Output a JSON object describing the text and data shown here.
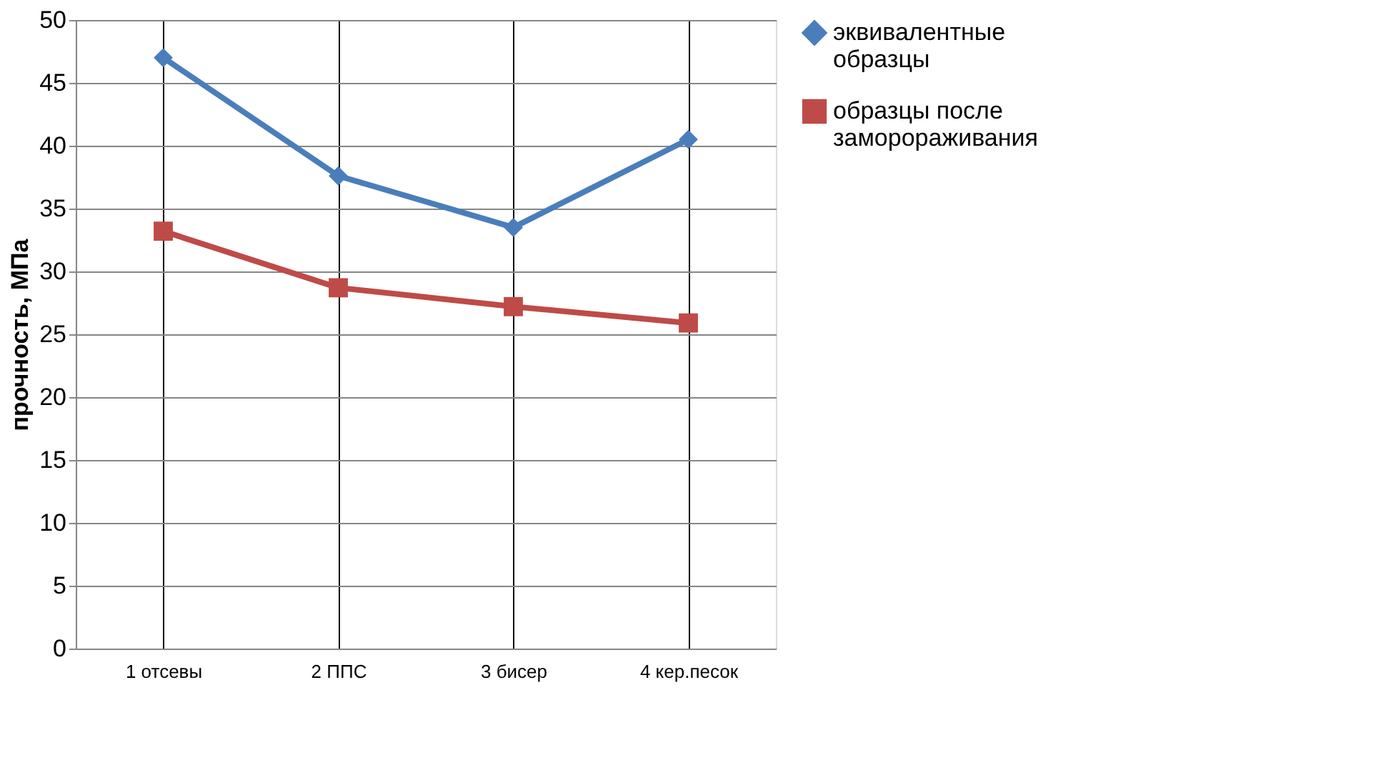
{
  "chart_data": {
    "type": "line",
    "ylabel": "прочность, МПа",
    "categories": [
      "1 отсевы",
      "2 ППС",
      "3 бисер",
      "4 кер.песок"
    ],
    "series": [
      {
        "name": "эквивалентные образцы",
        "color": "#4a7ebb",
        "marker": "diamond",
        "values": [
          47,
          37.6,
          33.5,
          40.5
        ]
      },
      {
        "name": "образцы после заморораживания",
        "color": "#be4b48",
        "marker": "square",
        "values": [
          33.2,
          28.7,
          27.2,
          25.9
        ]
      }
    ],
    "ylim": [
      0,
      50
    ],
    "yticks": [
      0,
      5,
      10,
      15,
      20,
      25,
      30,
      35,
      40,
      45,
      50
    ],
    "grid": true,
    "legend": "right"
  }
}
